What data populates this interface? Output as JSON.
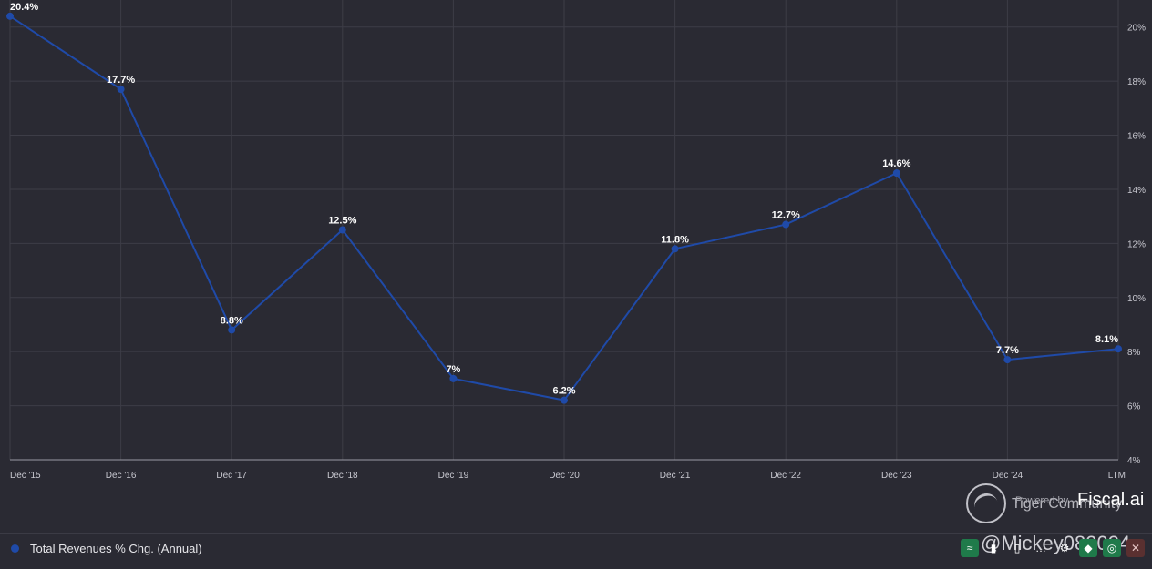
{
  "chart_data": {
    "type": "line",
    "categories": [
      "Dec '15",
      "Dec '16",
      "Dec '17",
      "Dec '18",
      "Dec '19",
      "Dec '20",
      "Dec '21",
      "Dec '22",
      "Dec '23",
      "Dec '24",
      "LTM"
    ],
    "series": [
      {
        "name": "Total Revenues % Chg. (Annual)",
        "values": [
          20.4,
          17.7,
          8.8,
          12.5,
          7.0,
          6.2,
          11.8,
          12.7,
          14.6,
          7.7,
          8.1
        ],
        "data_labels": [
          "20.4%",
          "17.7%",
          "8.8%",
          "12.5%",
          "7%",
          "6.2%",
          "11.8%",
          "12.7%",
          "14.6%",
          "7.7%",
          "8.1%"
        ],
        "color": "#1f4aa8"
      }
    ],
    "y_ticks": [
      4,
      6,
      8,
      10,
      12,
      14,
      16,
      18,
      20
    ],
    "y_tick_labels": [
      "4%",
      "6%",
      "8%",
      "10%",
      "12%",
      "14%",
      "16%",
      "18%",
      "20%"
    ],
    "ylim": [
      4,
      21
    ],
    "y_axis_side": "right",
    "grid": true,
    "legend_placement": "bottom-left"
  },
  "legend": {
    "label": "Total Revenues % Chg. (Annual)",
    "color": "#1f4aa8"
  },
  "watermark": {
    "brand": "Tiger Community",
    "powered_by": "Powered by",
    "fiscal": "Fiscal.ai",
    "user": "@Mickey082024"
  },
  "toolbar": {
    "buttons": [
      {
        "name": "line-chart-icon",
        "glyph": "≈",
        "style": "green"
      },
      {
        "name": "bar-chart-icon",
        "glyph": "▮",
        "style": "plain"
      },
      {
        "name": "column-chart-icon",
        "glyph": "▯",
        "style": "plain"
      },
      {
        "name": "more-icon",
        "glyph": "…",
        "style": "plain"
      },
      {
        "name": "gear-icon",
        "glyph": "⚙",
        "style": "plain"
      },
      {
        "name": "tag-icon",
        "glyph": "◆",
        "style": "green"
      },
      {
        "name": "layers-icon",
        "glyph": "◎",
        "style": "green"
      },
      {
        "name": "close-icon",
        "glyph": "✕",
        "style": "red"
      }
    ]
  },
  "colors": {
    "background": "#2a2a33",
    "grid": "#3d3d47",
    "series": "#1f4aa8"
  }
}
